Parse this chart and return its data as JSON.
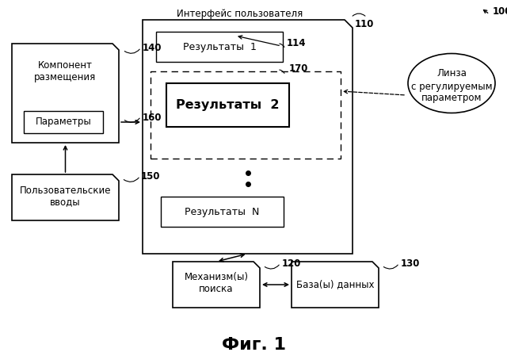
{
  "background_color": "#ffffff",
  "title": "Фиг. 1",
  "title_fontsize": 16,
  "labels": {
    "ui_label": "Интерфейс пользователя",
    "ui_num": "110",
    "top_num": "100",
    "result1_label": "Результаты  1",
    "result1_num": "114",
    "lens_region_num": "170",
    "result2_label": "Результаты  2",
    "resultN_label": "Результаты  N",
    "lens_label_line1": "Линза",
    "lens_label_line2": "с регулируемым",
    "lens_label_line3": "параметром",
    "placement_line1": "Компонент",
    "placement_line2": "размещения",
    "placement_num": "140",
    "params_label": "Параметры",
    "params_num": "160",
    "user_input_line1": "Пользовательские",
    "user_input_line2": "вводы",
    "user_input_num": "150",
    "search_line1": "Механизм(ы)",
    "search_line2": "поиска",
    "search_num": "120",
    "db_line1": "База(ы) данных",
    "db_num": "130"
  },
  "font_size": 8.5
}
